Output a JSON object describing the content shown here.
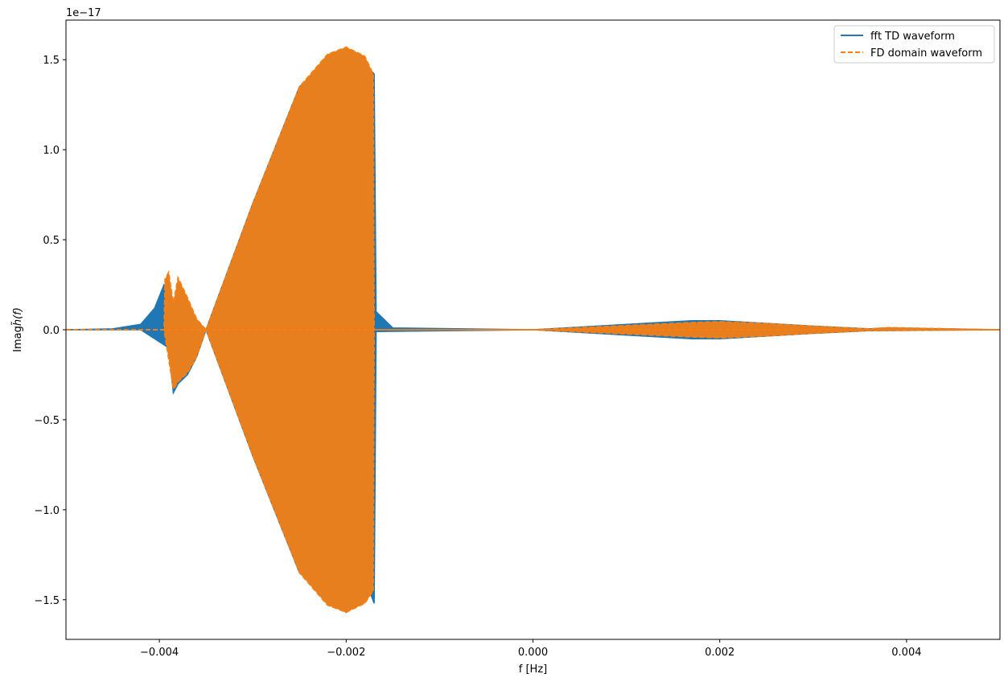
{
  "chart_data": {
    "type": "line",
    "xlabel": "f [Hz]",
    "ylabel": "Imagh̃(f)",
    "ylabel_parts": {
      "main": "Imag",
      "sym": "h̃",
      "arg": "(f)"
    },
    "y_offset_text": "1e−17",
    "xlim": [
      -0.005,
      0.005
    ],
    "ylim": [
      -1.72,
      1.72
    ],
    "y_scale_factor": "1e-17",
    "xticks": [
      -0.004,
      -0.002,
      0.0,
      0.002,
      0.004
    ],
    "xtick_labels": [
      "−0.004",
      "−0.002",
      "0.000",
      "0.002",
      "0.004"
    ],
    "yticks": [
      -1.5,
      -1.0,
      -0.5,
      0.0,
      0.5,
      1.0,
      1.5
    ],
    "ytick_labels": [
      "−1.5",
      "−1.0",
      "−0.5",
      "0.0",
      "0.5",
      "1.0",
      "1.5"
    ],
    "grid": false,
    "legend_position": "top-right",
    "series": [
      {
        "name": "fft TD waveform",
        "color": "#1f77b4",
        "style": "solid",
        "envelope_upper": [
          [
            -0.005,
            0.0
          ],
          [
            -0.0045,
            0.005
          ],
          [
            -0.0042,
            0.03
          ],
          [
            -0.00405,
            0.12
          ],
          [
            -0.00395,
            0.25
          ],
          [
            -0.0039,
            0.2
          ],
          [
            -0.00385,
            -0.35
          ],
          [
            -0.0038,
            0.27
          ],
          [
            -0.0037,
            0.15
          ],
          [
            -0.0036,
            0.05
          ],
          [
            -0.0035,
            0.0
          ],
          [
            -0.003,
            0.7
          ],
          [
            -0.0025,
            1.35
          ],
          [
            -0.002,
            1.57
          ],
          [
            -0.00175,
            1.45
          ],
          [
            -0.0017,
            1.42
          ],
          [
            -0.00168,
            0.1
          ],
          [
            -0.0015,
            0.01
          ],
          [
            0.0,
            0.0
          ],
          [
            0.0017,
            0.05
          ],
          [
            0.002,
            0.05
          ],
          [
            0.003,
            0.02
          ],
          [
            0.0036,
            0.005
          ],
          [
            0.0038,
            0.01
          ],
          [
            0.005,
            0.0
          ]
        ],
        "envelope_lower": [
          [
            -0.005,
            0.0
          ],
          [
            -0.0045,
            0.0
          ],
          [
            -0.0042,
            0.0
          ],
          [
            -0.0039,
            -0.1
          ],
          [
            -0.00385,
            -0.35
          ],
          [
            -0.0038,
            -0.3
          ],
          [
            -0.0037,
            -0.25
          ],
          [
            -0.0036,
            -0.15
          ],
          [
            -0.0035,
            0.0
          ],
          [
            -0.003,
            -0.7
          ],
          [
            -0.0025,
            -1.35
          ],
          [
            -0.002,
            -1.57
          ],
          [
            -0.00175,
            -1.45
          ],
          [
            -0.0017,
            -1.52
          ],
          [
            -0.00168,
            -0.01
          ],
          [
            0.0,
            0.0
          ],
          [
            0.0017,
            -0.05
          ],
          [
            0.002,
            -0.05
          ],
          [
            0.003,
            -0.02
          ],
          [
            0.0036,
            -0.005
          ],
          [
            0.005,
            0.0
          ]
        ]
      },
      {
        "name": "FD domain waveform",
        "color": "#ff7f0e",
        "fill_color": "#e87f1e",
        "style": "dashed",
        "envelope_upper": [
          [
            -0.005,
            0.0
          ],
          [
            -0.00395,
            0.0
          ],
          [
            -0.00394,
            0.28
          ],
          [
            -0.0039,
            0.32
          ],
          [
            -0.00385,
            0.15
          ],
          [
            -0.0038,
            0.29
          ],
          [
            -0.0037,
            0.18
          ],
          [
            -0.0036,
            0.06
          ],
          [
            -0.0035,
            0.0
          ],
          [
            -0.003,
            0.7
          ],
          [
            -0.0025,
            1.35
          ],
          [
            -0.0022,
            1.53
          ],
          [
            -0.002,
            1.57
          ],
          [
            -0.0018,
            1.52
          ],
          [
            -0.00171,
            1.42
          ],
          [
            -0.0017,
            0.0
          ],
          [
            0.0,
            0.0
          ],
          [
            0.0017,
            0.04
          ],
          [
            0.002,
            0.045
          ],
          [
            0.0025,
            0.035
          ],
          [
            0.003,
            0.02
          ],
          [
            0.0036,
            0.005
          ],
          [
            0.0038,
            0.012
          ],
          [
            0.005,
            0.0
          ]
        ],
        "envelope_lower": [
          [
            -0.005,
            0.0
          ],
          [
            -0.00395,
            0.0
          ],
          [
            -0.00385,
            -0.33
          ],
          [
            -0.0038,
            -0.29
          ],
          [
            -0.0037,
            -0.24
          ],
          [
            -0.0036,
            -0.15
          ],
          [
            -0.0035,
            0.0
          ],
          [
            -0.003,
            -0.7
          ],
          [
            -0.0025,
            -1.35
          ],
          [
            -0.0022,
            -1.53
          ],
          [
            -0.002,
            -1.57
          ],
          [
            -0.0018,
            -1.52
          ],
          [
            -0.00171,
            -1.45
          ],
          [
            -0.0017,
            0.0
          ],
          [
            0.0,
            0.0
          ],
          [
            0.0017,
            -0.04
          ],
          [
            0.002,
            -0.045
          ],
          [
            0.0025,
            -0.035
          ],
          [
            0.003,
            -0.02
          ],
          [
            0.0036,
            -0.005
          ],
          [
            0.005,
            0.0
          ]
        ]
      }
    ]
  }
}
